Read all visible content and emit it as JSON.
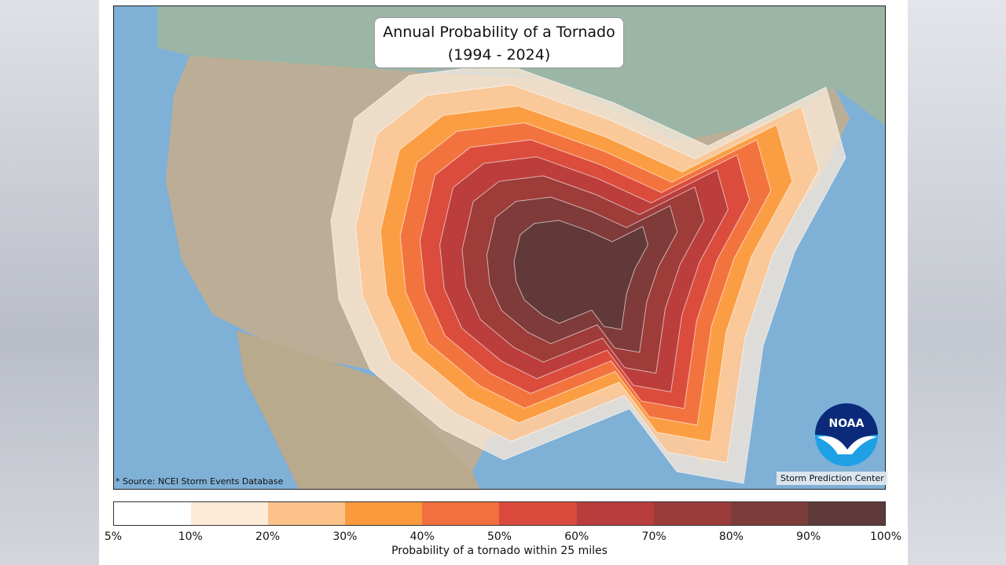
{
  "title": {
    "line1": "Annual Probability of a Tornado",
    "line2": "(1994 - 2024)"
  },
  "source": "* Source: NCEI Storm Events Database",
  "credit": "Storm Prediction Center",
  "logo": {
    "text": "NOAA",
    "colors": {
      "top": "#0b2a7a",
      "bottom": "#1ea0e6"
    }
  },
  "colorbar": {
    "label": "Probability of a tornado within 25 miles",
    "ticks": [
      "5%",
      "10%",
      "20%",
      "30%",
      "40%",
      "50%",
      "60%",
      "70%",
      "80%",
      "90%",
      "100%"
    ],
    "colors": [
      "#ffffff",
      "#fdebd8",
      "#fdc28a",
      "#fb9a3c",
      "#f2703f",
      "#d9493c",
      "#b83d3d",
      "#9a3c3a",
      "#7c3c3a",
      "#5e3a3a"
    ]
  },
  "map": {
    "ocean": "#7fb0d6",
    "land": "#b7a68e",
    "canada": "#8fb0a0"
  }
}
